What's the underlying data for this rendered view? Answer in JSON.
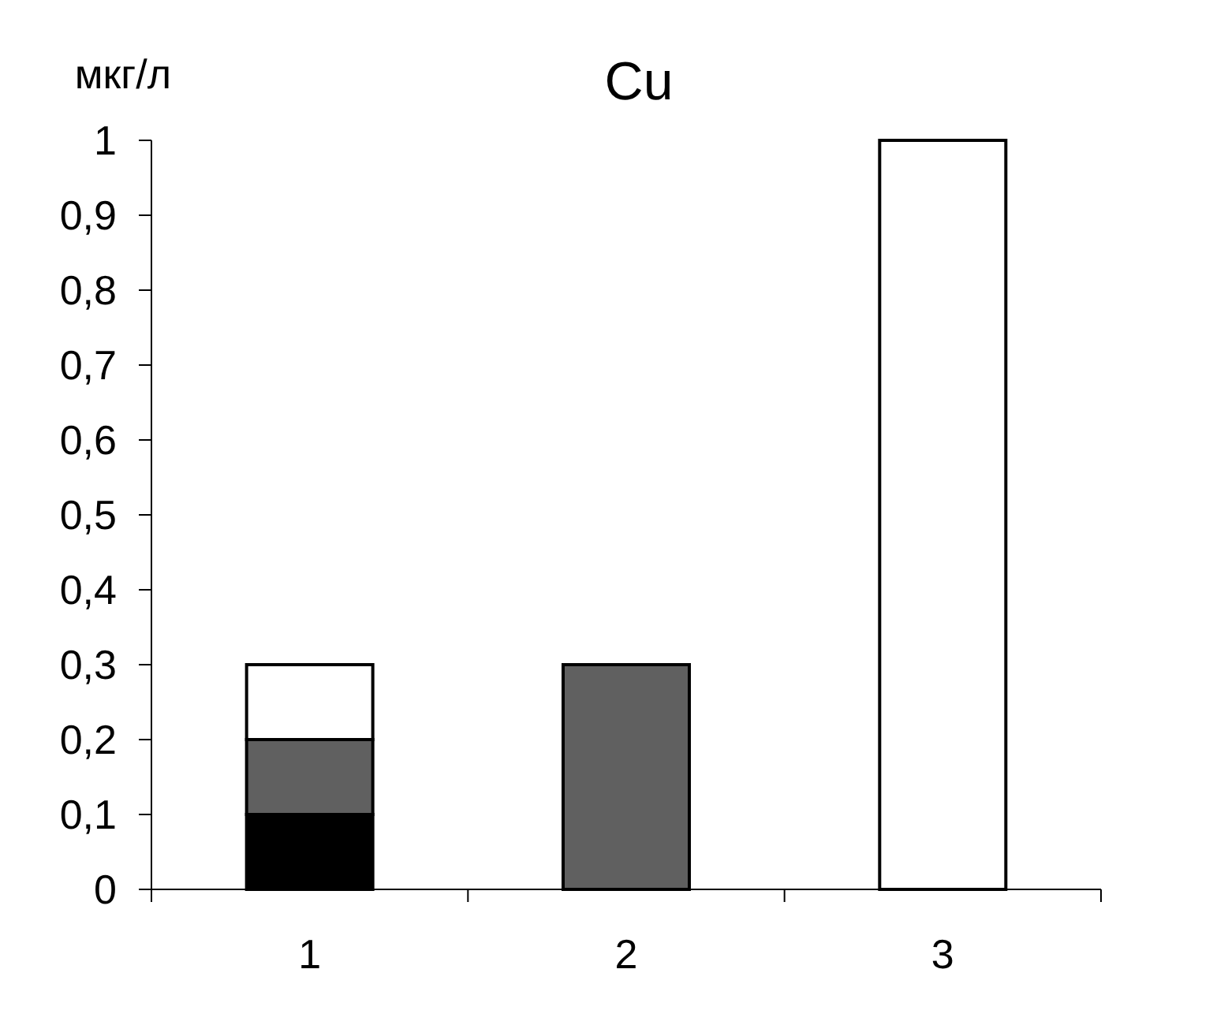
{
  "chart_data": {
    "type": "bar",
    "title": "Cu",
    "ylabel": "мкг/л",
    "categories": [
      "1",
      "2",
      "3"
    ],
    "stacked": true,
    "series": [
      {
        "color": "#000000",
        "values": [
          0.1,
          null,
          null
        ]
      },
      {
        "color": "#606060",
        "values": [
          0.1,
          0.3,
          null
        ]
      },
      {
        "color": "#ffffff",
        "values": [
          0.1,
          null,
          1
        ]
      }
    ],
    "ylim": [
      0,
      1
    ],
    "yticks": [
      0,
      {
        "value": 0.1,
        "label": "0,1"
      },
      {
        "value": 0.2,
        "label": "0,2"
      },
      {
        "value": 0.3,
        "label": "0,3"
      },
      {
        "value": 0.4,
        "label": "0,4"
      },
      {
        "value": 0.5,
        "label": "0,5"
      },
      {
        "value": 0.6,
        "label": "0,6"
      },
      {
        "value": 0.7,
        "label": "0,7"
      },
      {
        "value": 0.8,
        "label": "0,8"
      },
      {
        "value": 0.9,
        "label": "0,9"
      },
      1
    ],
    "grid": false
  }
}
